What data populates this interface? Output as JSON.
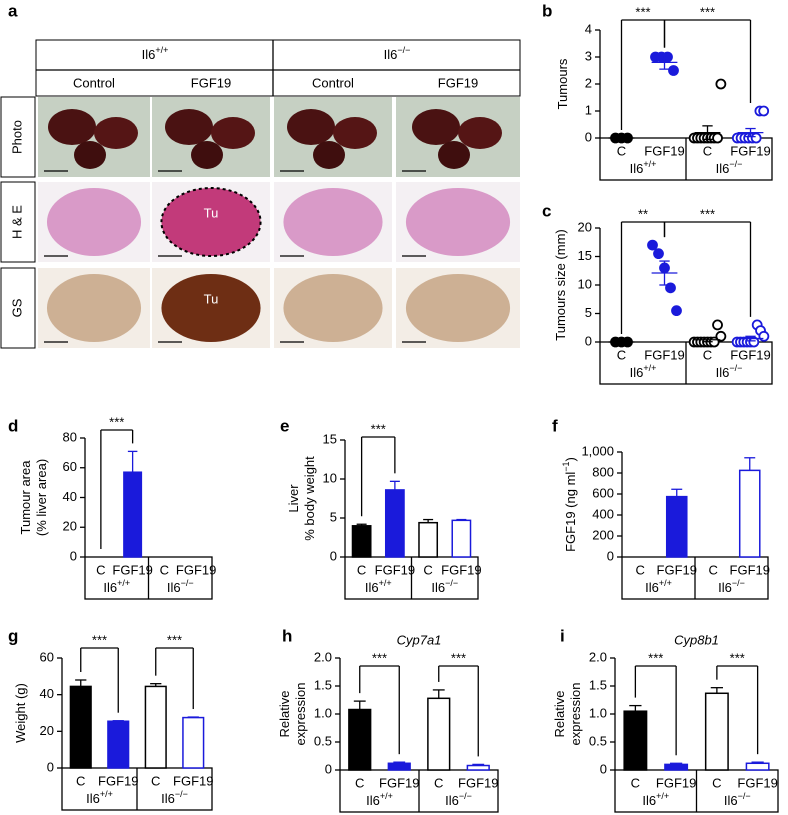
{
  "panel_a": {
    "letter": "a",
    "groups": [
      {
        "label": "Il6",
        "sup": "+/+"
      },
      {
        "label": "Il6",
        "sup": "−/−"
      }
    ],
    "columns": [
      "Control",
      "FGF19",
      "Control",
      "FGF19"
    ],
    "rows": [
      "Photo",
      "H & E",
      "GS"
    ],
    "annotations": [
      "Tu",
      "Tu"
    ]
  },
  "chart_data": [
    {
      "type": "scatter",
      "panel": "b",
      "ylabel": [
        "Tumours"
      ],
      "categories": [
        "C",
        "FGF19",
        "C",
        "FGF19"
      ],
      "groups": [
        {
          "label": "Il6",
          "sup": "+/+"
        },
        {
          "label": "Il6",
          "sup": "−/−"
        }
      ],
      "colors": [
        "#000000",
        "#1a1adb",
        "#000000",
        "#1a1adb"
      ],
      "filled": [
        true,
        true,
        false,
        false
      ],
      "points": [
        [
          0,
          0,
          0
        ],
        [
          3,
          3,
          3,
          2.5
        ],
        [
          0,
          0,
          0,
          0,
          0,
          0,
          0,
          0,
          2
        ],
        [
          0,
          0,
          0,
          0,
          0,
          0,
          1,
          1
        ]
      ],
      "means": [
        0,
        2.8,
        0.2,
        0.2
      ],
      "sems": [
        0,
        0.25,
        0.25,
        0.15
      ],
      "ylim": [
        0,
        4
      ],
      "yticks": [
        0,
        1,
        2,
        3,
        4
      ],
      "significance": [
        {
          "from": 0,
          "to": 1,
          "label": "***"
        },
        {
          "from": 1,
          "to": 3,
          "label": "***"
        }
      ]
    },
    {
      "type": "scatter",
      "panel": "c",
      "ylabel": [
        "Tumours size (mm)"
      ],
      "categories": [
        "C",
        "FGF19",
        "C",
        "FGF19"
      ],
      "groups": [
        {
          "label": "Il6",
          "sup": "+/+"
        },
        {
          "label": "Il6",
          "sup": "−/−"
        }
      ],
      "colors": [
        "#000000",
        "#1a1adb",
        "#000000",
        "#1a1adb"
      ],
      "filled": [
        true,
        true,
        false,
        false
      ],
      "points": [
        [
          0,
          0,
          0
        ],
        [
          17,
          15.5,
          13,
          9.5,
          5.5
        ],
        [
          0,
          0,
          0,
          0,
          0,
          0,
          0,
          3,
          1
        ],
        [
          0,
          0,
          0,
          0,
          0,
          0,
          3,
          2,
          1
        ]
      ],
      "means": [
        0,
        12.1,
        0.4,
        0.6
      ],
      "sems": [
        0,
        2.1,
        0.35,
        0.4
      ],
      "ylim": [
        0,
        20
      ],
      "yticks": [
        0,
        5,
        10,
        15,
        20
      ],
      "significance": [
        {
          "from": 0,
          "to": 1,
          "label": "**"
        },
        {
          "from": 1,
          "to": 3,
          "label": "***"
        }
      ]
    },
    {
      "type": "bar",
      "panel": "d",
      "ylabel": [
        "Tumour area",
        "(% liver area)"
      ],
      "categories": [
        "C",
        "FGF19",
        "C",
        "FGF19"
      ],
      "groups": [
        {
          "label": "Il6",
          "sup": "+/+"
        },
        {
          "label": "Il6",
          "sup": "−/−"
        }
      ],
      "colors": [
        "#000000",
        "#1a1adb",
        "#000000",
        "#1a1adb"
      ],
      "filled": [
        true,
        true,
        false,
        false
      ],
      "values": [
        0,
        57,
        0,
        0
      ],
      "errors": [
        null,
        14,
        null,
        null
      ],
      "ylim": [
        0,
        80
      ],
      "yticks": [
        0,
        20,
        40,
        60,
        80
      ],
      "significance": [
        {
          "from": 0,
          "to": 1,
          "label": "***"
        }
      ]
    },
    {
      "type": "bar",
      "panel": "e",
      "ylabel": [
        "Liver",
        "% body weight"
      ],
      "categories": [
        "C",
        "FGF19",
        "C",
        "FGF19"
      ],
      "groups": [
        {
          "label": "Il6",
          "sup": "+/+"
        },
        {
          "label": "Il6",
          "sup": "−/−"
        }
      ],
      "colors": [
        "#000000",
        "#1a1adb",
        "#000000",
        "#1a1adb"
      ],
      "filled": [
        true,
        true,
        false,
        false
      ],
      "values": [
        4.0,
        8.6,
        4.4,
        4.7
      ],
      "errors": [
        0.2,
        1.1,
        0.4,
        0.1
      ],
      "ylim": [
        0,
        15
      ],
      "yticks": [
        0,
        5,
        10,
        15
      ],
      "significance": [
        {
          "from": 0,
          "to": 1,
          "label": "***"
        }
      ]
    },
    {
      "type": "bar",
      "panel": "f",
      "ylabel": "FGF19 (ng ml",
      "ylabel_sup": "−1",
      "ylabel_tail": ")",
      "categories": [
        "C",
        "FGF19",
        "C",
        "FGF19"
      ],
      "groups": [
        {
          "label": "Il6",
          "sup": "+/+"
        },
        {
          "label": "Il6",
          "sup": "−/−"
        }
      ],
      "colors": [
        "#000000",
        "#1a1adb",
        "#000000",
        "#1a1adb"
      ],
      "filled": [
        true,
        true,
        false,
        false
      ],
      "values": [
        0,
        575,
        0,
        825
      ],
      "errors": [
        null,
        70,
        null,
        120
      ],
      "ylim": [
        0,
        1000
      ],
      "yticks": [
        0,
        200,
        400,
        600,
        800,
        {
          "value": 1000,
          "label": "1,000"
        }
      ],
      "significance": []
    },
    {
      "type": "bar",
      "panel": "g",
      "ylabel": [
        "Weight (g)"
      ],
      "categories": [
        "C",
        "FGF19",
        "C",
        "FGF19"
      ],
      "groups": [
        {
          "label": "Il6",
          "sup": "+/+"
        },
        {
          "label": "Il6",
          "sup": "−/−"
        }
      ],
      "colors": [
        "#000000",
        "#1a1adb",
        "#000000",
        "#1a1adb"
      ],
      "filled": [
        true,
        true,
        false,
        false
      ],
      "values": [
        44.5,
        25.5,
        44.5,
        27.5
      ],
      "errors": [
        3.5,
        0.3,
        1.5,
        0.3
      ],
      "ylim": [
        0,
        60
      ],
      "yticks": [
        0,
        20,
        40,
        60
      ],
      "significance": [
        {
          "from": 0,
          "to": 1,
          "label": "***"
        },
        {
          "from": 2,
          "to": 3,
          "label": "***"
        }
      ]
    },
    {
      "type": "bar",
      "panel": "h",
      "title": "Cyp7a1",
      "ylabel": [
        "Relative",
        "expression"
      ],
      "categories": [
        "C",
        "FGF19",
        "C",
        "FGF19"
      ],
      "groups": [
        {
          "label": "Il6",
          "sup": "+/+"
        },
        {
          "label": "Il6",
          "sup": "−/−"
        }
      ],
      "colors": [
        "#000000",
        "#1a1adb",
        "#000000",
        "#1a1adb"
      ],
      "filled": [
        true,
        true,
        false,
        false
      ],
      "values": [
        1.08,
        0.12,
        1.28,
        0.08
      ],
      "errors": [
        0.15,
        0.02,
        0.15,
        0.02
      ],
      "ylim": [
        0,
        2
      ],
      "yticks": [
        0,
        0.5,
        {
          "value": 1,
          "label": "1.0"
        },
        1.5,
        {
          "value": 2,
          "label": "2.0"
        }
      ],
      "significance": [
        {
          "from": 0,
          "to": 1,
          "label": "***"
        },
        {
          "from": 2,
          "to": 3,
          "label": "***"
        }
      ]
    },
    {
      "type": "bar",
      "panel": "i",
      "title": "Cyp8b1",
      "ylabel": [
        "Relative",
        "expression"
      ],
      "categories": [
        "C",
        "FGF19",
        "C",
        "FGF19"
      ],
      "groups": [
        {
          "label": "Il6",
          "sup": "+/+"
        },
        {
          "label": "Il6",
          "sup": "−/−"
        }
      ],
      "colors": [
        "#000000",
        "#1a1adb",
        "#000000",
        "#1a1adb"
      ],
      "filled": [
        true,
        true,
        false,
        false
      ],
      "values": [
        1.05,
        0.1,
        1.37,
        0.12
      ],
      "errors": [
        0.1,
        0.02,
        0.1,
        0.02
      ],
      "ylim": [
        0,
        2
      ],
      "yticks": [
        0,
        0.5,
        {
          "value": 1,
          "label": "1.0"
        },
        1.5,
        {
          "value": 2,
          "label": "2.0"
        }
      ],
      "significance": [
        {
          "from": 0,
          "to": 1,
          "label": "***"
        },
        {
          "from": 2,
          "to": 3,
          "label": "***"
        }
      ]
    }
  ]
}
